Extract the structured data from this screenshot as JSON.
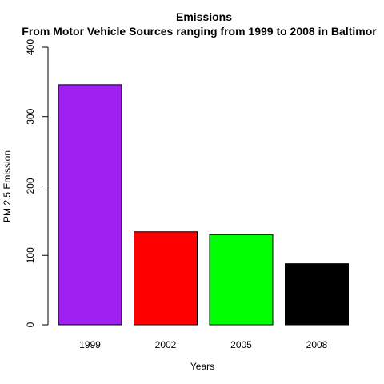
{
  "chart_data": {
    "type": "bar",
    "title": "Emissions",
    "subtitle": "From Motor Vehicle Sources ranging from 1999 to 2008 in Baltimor",
    "xlabel": "Years",
    "ylabel": "PM 2.5 Emission",
    "categories": [
      "1999",
      "2002",
      "2005",
      "2008"
    ],
    "values": [
      346,
      134,
      130,
      88
    ],
    "colors": [
      "#a020f0",
      "#ff0000",
      "#00ff00",
      "#000000"
    ],
    "ylim": [
      0,
      400
    ],
    "yticks": [
      0,
      100,
      200,
      300,
      400
    ],
    "ytick_labels": [
      "0",
      "100",
      "200",
      "300",
      "400"
    ],
    "grid": false,
    "legend": "none"
  }
}
